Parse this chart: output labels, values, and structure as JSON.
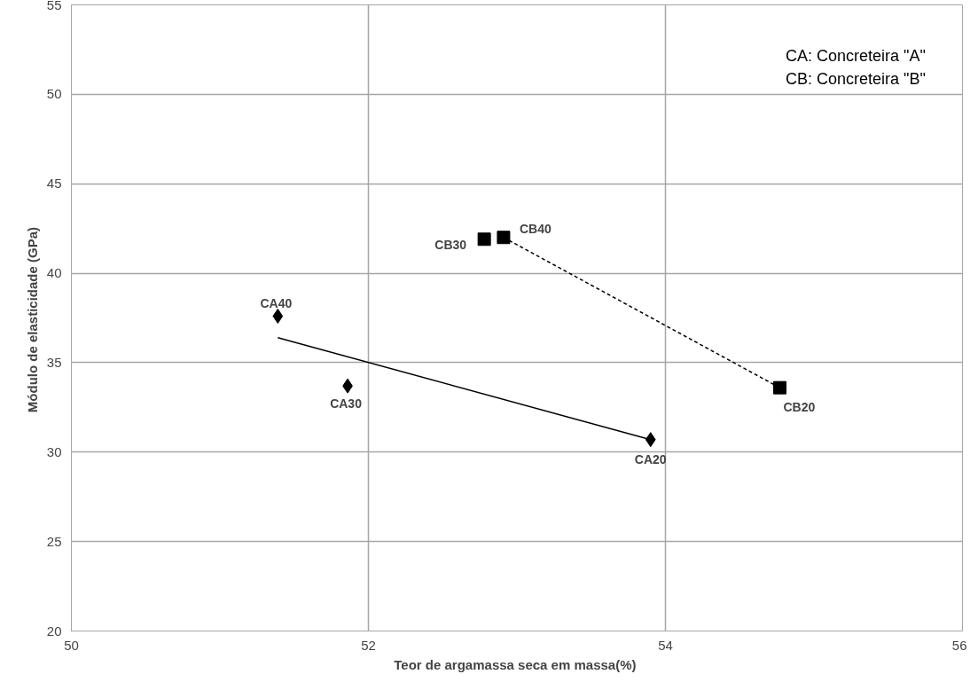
{
  "chart_data": {
    "type": "scatter",
    "xlabel": "Teor de argamassa seca  em massa(%)",
    "ylabel": "Módulo de elasticidade  (GPa)",
    "xlim": [
      50,
      56
    ],
    "xticks": [
      50,
      52,
      54,
      56
    ],
    "ylim": [
      20,
      55
    ],
    "yticks": [
      20,
      25,
      30,
      35,
      40,
      45,
      50,
      55
    ],
    "grid": true,
    "series": [
      {
        "marker": "diamond",
        "color": "#000000",
        "x": [
          51.39,
          51.86,
          53.9
        ],
        "values": [
          37.6,
          33.7,
          30.7
        ]
      },
      {
        "marker": "square",
        "color": "#000000",
        "x": [
          52.78,
          52.91,
          54.77
        ],
        "values": [
          41.9,
          42.0,
          33.6
        ]
      },
      {
        "type": "line",
        "marker": "none",
        "line_style": "solid",
        "color": "#000000",
        "x": [
          51.39,
          53.9
        ],
        "values": [
          36.4,
          30.7
        ]
      },
      {
        "type": "line",
        "marker": "none",
        "line_style": "dashed",
        "color": "#000000",
        "x": [
          52.91,
          54.77
        ],
        "values": [
          42.0,
          33.6
        ]
      }
    ],
    "annotations": [
      {
        "text": "CA40",
        "x": 51.39,
        "y": 37.6
      },
      {
        "text": "CA30",
        "x": 51.86,
        "y": 33.7
      },
      {
        "text": "CA20",
        "x": 53.9,
        "y": 30.7
      },
      {
        "text": "CB30",
        "x": 52.78,
        "y": 41.9
      },
      {
        "text": "CB40",
        "x": 52.91,
        "y": 42.0
      },
      {
        "text": "CB20",
        "x": 54.77,
        "y": 33.6
      },
      "CA: Concreteira \"A\"\nCB: Concreteira \"B\""
    ]
  }
}
